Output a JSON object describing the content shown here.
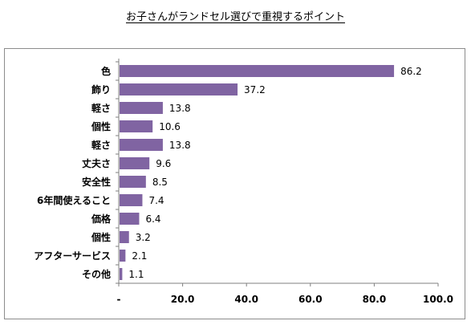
{
  "chart_data": {
    "type": "bar",
    "orientation": "horizontal",
    "title": "お子さんがランドセル選びで重視するポイント",
    "categories": [
      "色",
      "飾り",
      "軽さ",
      "個性",
      "軽さ",
      "丈夫さ",
      "安全性",
      "6年間使えること",
      "価格",
      "個性",
      "アフターサービス",
      "その他"
    ],
    "values": [
      86.2,
      37.2,
      13.8,
      10.6,
      13.8,
      9.6,
      8.5,
      7.4,
      6.4,
      3.2,
      2.1,
      1.1
    ],
    "value_labels": [
      "86.2",
      "37.2",
      "13.8",
      "10.6",
      "13.8",
      "9.6",
      "8.5",
      "7.4",
      "6.4",
      "3.2",
      "2.1",
      "1.1"
    ],
    "xlim": [
      0,
      100
    ],
    "xticks": [
      "-",
      "20.0",
      "40.0",
      "60.0",
      "80.0",
      "100.0"
    ],
    "xlabel": "",
    "ylabel": "",
    "bar_color": "#8064a2",
    "grid": false,
    "legend": "none"
  }
}
